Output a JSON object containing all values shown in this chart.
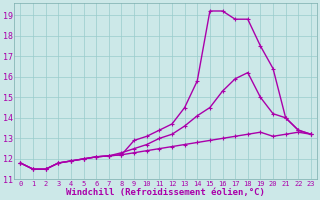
{
  "xlabel": "Windchill (Refroidissement éolien,°C)",
  "bg_color": "#cce8e8",
  "line_color": "#aa00aa",
  "grid_color": "#99cccc",
  "spine_color": "#7aacac",
  "xlim": [
    -0.5,
    23.5
  ],
  "ylim": [
    11,
    19.6
  ],
  "yticks": [
    11,
    12,
    13,
    14,
    15,
    16,
    17,
    18,
    19
  ],
  "xticks": [
    0,
    1,
    2,
    3,
    4,
    5,
    6,
    7,
    8,
    9,
    10,
    11,
    12,
    13,
    14,
    15,
    16,
    17,
    18,
    19,
    20,
    21,
    22,
    23
  ],
  "line1_x": [
    0,
    1,
    2,
    3,
    4,
    5,
    6,
    7,
    8,
    9,
    10,
    11,
    12,
    13,
    14,
    15,
    16,
    17,
    18,
    19,
    20,
    21,
    22,
    23
  ],
  "line1_y": [
    11.8,
    11.5,
    11.5,
    11.8,
    11.9,
    12.0,
    12.1,
    12.15,
    12.2,
    12.3,
    12.4,
    12.5,
    12.6,
    12.7,
    12.8,
    12.9,
    13.0,
    13.1,
    13.2,
    13.3,
    13.1,
    13.2,
    13.3,
    13.2
  ],
  "line2_x": [
    0,
    1,
    2,
    3,
    4,
    5,
    6,
    7,
    8,
    9,
    10,
    11,
    12,
    13,
    14,
    15,
    16,
    17,
    18,
    19,
    20,
    21,
    22,
    23
  ],
  "line2_y": [
    11.8,
    11.5,
    11.5,
    11.8,
    11.9,
    12.0,
    12.1,
    12.15,
    12.3,
    12.5,
    12.7,
    13.0,
    13.2,
    13.6,
    14.1,
    14.5,
    15.3,
    15.9,
    16.2,
    15.0,
    14.2,
    14.0,
    13.4,
    13.2
  ],
  "line3_x": [
    0,
    1,
    2,
    3,
    4,
    5,
    6,
    7,
    8,
    9,
    10,
    11,
    12,
    13,
    14,
    15,
    16,
    17,
    18,
    19,
    20,
    21,
    22,
    23
  ],
  "line3_y": [
    11.8,
    11.5,
    11.5,
    11.8,
    11.9,
    12.0,
    12.1,
    12.15,
    12.2,
    12.9,
    13.1,
    13.4,
    13.7,
    14.5,
    15.8,
    19.2,
    19.2,
    18.8,
    18.8,
    17.5,
    16.4,
    14.0,
    13.4,
    13.2
  ],
  "xlabel_fontsize": 6.5,
  "tick_fontsize": 6,
  "linewidth": 1.0,
  "markersize": 3
}
